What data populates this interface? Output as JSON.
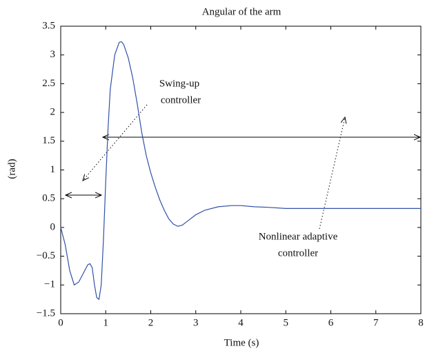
{
  "chart_data": {
    "type": "line",
    "title": "Angular of the arm",
    "x_label": "Time (s)",
    "y_label": "(rad)",
    "annotations": [
      [
        "Swing-up",
        "controller"
      ],
      [
        "Nonlinear adaptive",
        "controller"
      ]
    ],
    "x": [
      0,
      0.1,
      0.2,
      0.3,
      0.4,
      0.5,
      0.6,
      0.65,
      0.7,
      0.75,
      0.8,
      0.85,
      0.9,
      0.95,
      1.0,
      1.05,
      1.1,
      1.2,
      1.3,
      1.35,
      1.4,
      1.5,
      1.6,
      1.7,
      1.8,
      1.9,
      2.0,
      2.1,
      2.2,
      2.3,
      2.4,
      2.5,
      2.6,
      2.7,
      2.8,
      3.0,
      3.2,
      3.5,
      3.8,
      4.0,
      4.3,
      4.6,
      5.0,
      6.0,
      7.0,
      8.0
    ],
    "series": [
      {
        "color": "#3050a8",
        "values": [
          0,
          -0.3,
          -0.75,
          -1.0,
          -0.95,
          -0.8,
          -0.65,
          -0.63,
          -0.7,
          -1.0,
          -1.22,
          -1.25,
          -1.0,
          -0.2,
          0.8,
          1.7,
          2.4,
          3.0,
          3.22,
          3.23,
          3.18,
          2.95,
          2.6,
          2.15,
          1.65,
          1.25,
          0.95,
          0.7,
          0.48,
          0.3,
          0.15,
          0.06,
          0.02,
          0.04,
          0.1,
          0.22,
          0.3,
          0.36,
          0.38,
          0.38,
          0.36,
          0.35,
          0.33,
          0.33,
          0.33,
          0.33
        ]
      }
    ],
    "xlim": [
      0,
      8
    ],
    "xticks": [
      0,
      1,
      2,
      3,
      4,
      5,
      6,
      7,
      8
    ],
    "ylim": [
      -1.5,
      3.5
    ],
    "yticks": [
      {
        "value": -1.5,
        "label": "−1.5"
      },
      {
        "value": -1,
        "label": "−1"
      },
      {
        "value": -0.5,
        "label": "−0.5"
      },
      0,
      0.5,
      1,
      1.5,
      2,
      2.5,
      3,
      3.5
    ],
    "grid": false
  }
}
